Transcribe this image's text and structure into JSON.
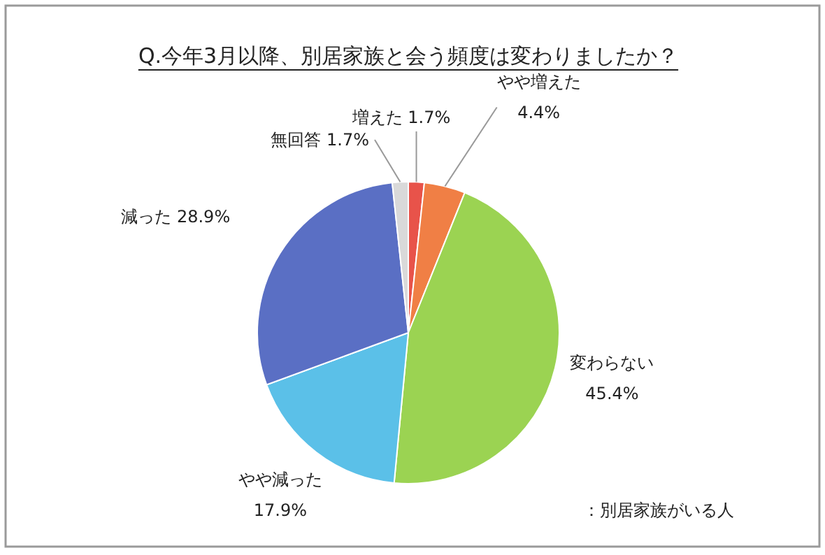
{
  "chart_data": {
    "type": "pie",
    "title": "Q.今年3月以降、別居家族と会う頻度は変わりましたか？",
    "categories": [
      "増えた",
      "やや増えた",
      "変わらない",
      "やや減った",
      "減った",
      "無回答"
    ],
    "values": [
      1.7,
      4.4,
      45.4,
      17.9,
      28.9,
      1.7
    ],
    "colors": [
      "#e8534a",
      "#f07f45",
      "#9bd352",
      "#5bc0e8",
      "#5a6fc4",
      "#d9d9d9"
    ],
    "value_labels": [
      "1.7%",
      "4.4%",
      "45.4%",
      "17.9%",
      "28.9%",
      "1.7%"
    ],
    "annotations": [
      "：別居家族がいる人"
    ]
  }
}
